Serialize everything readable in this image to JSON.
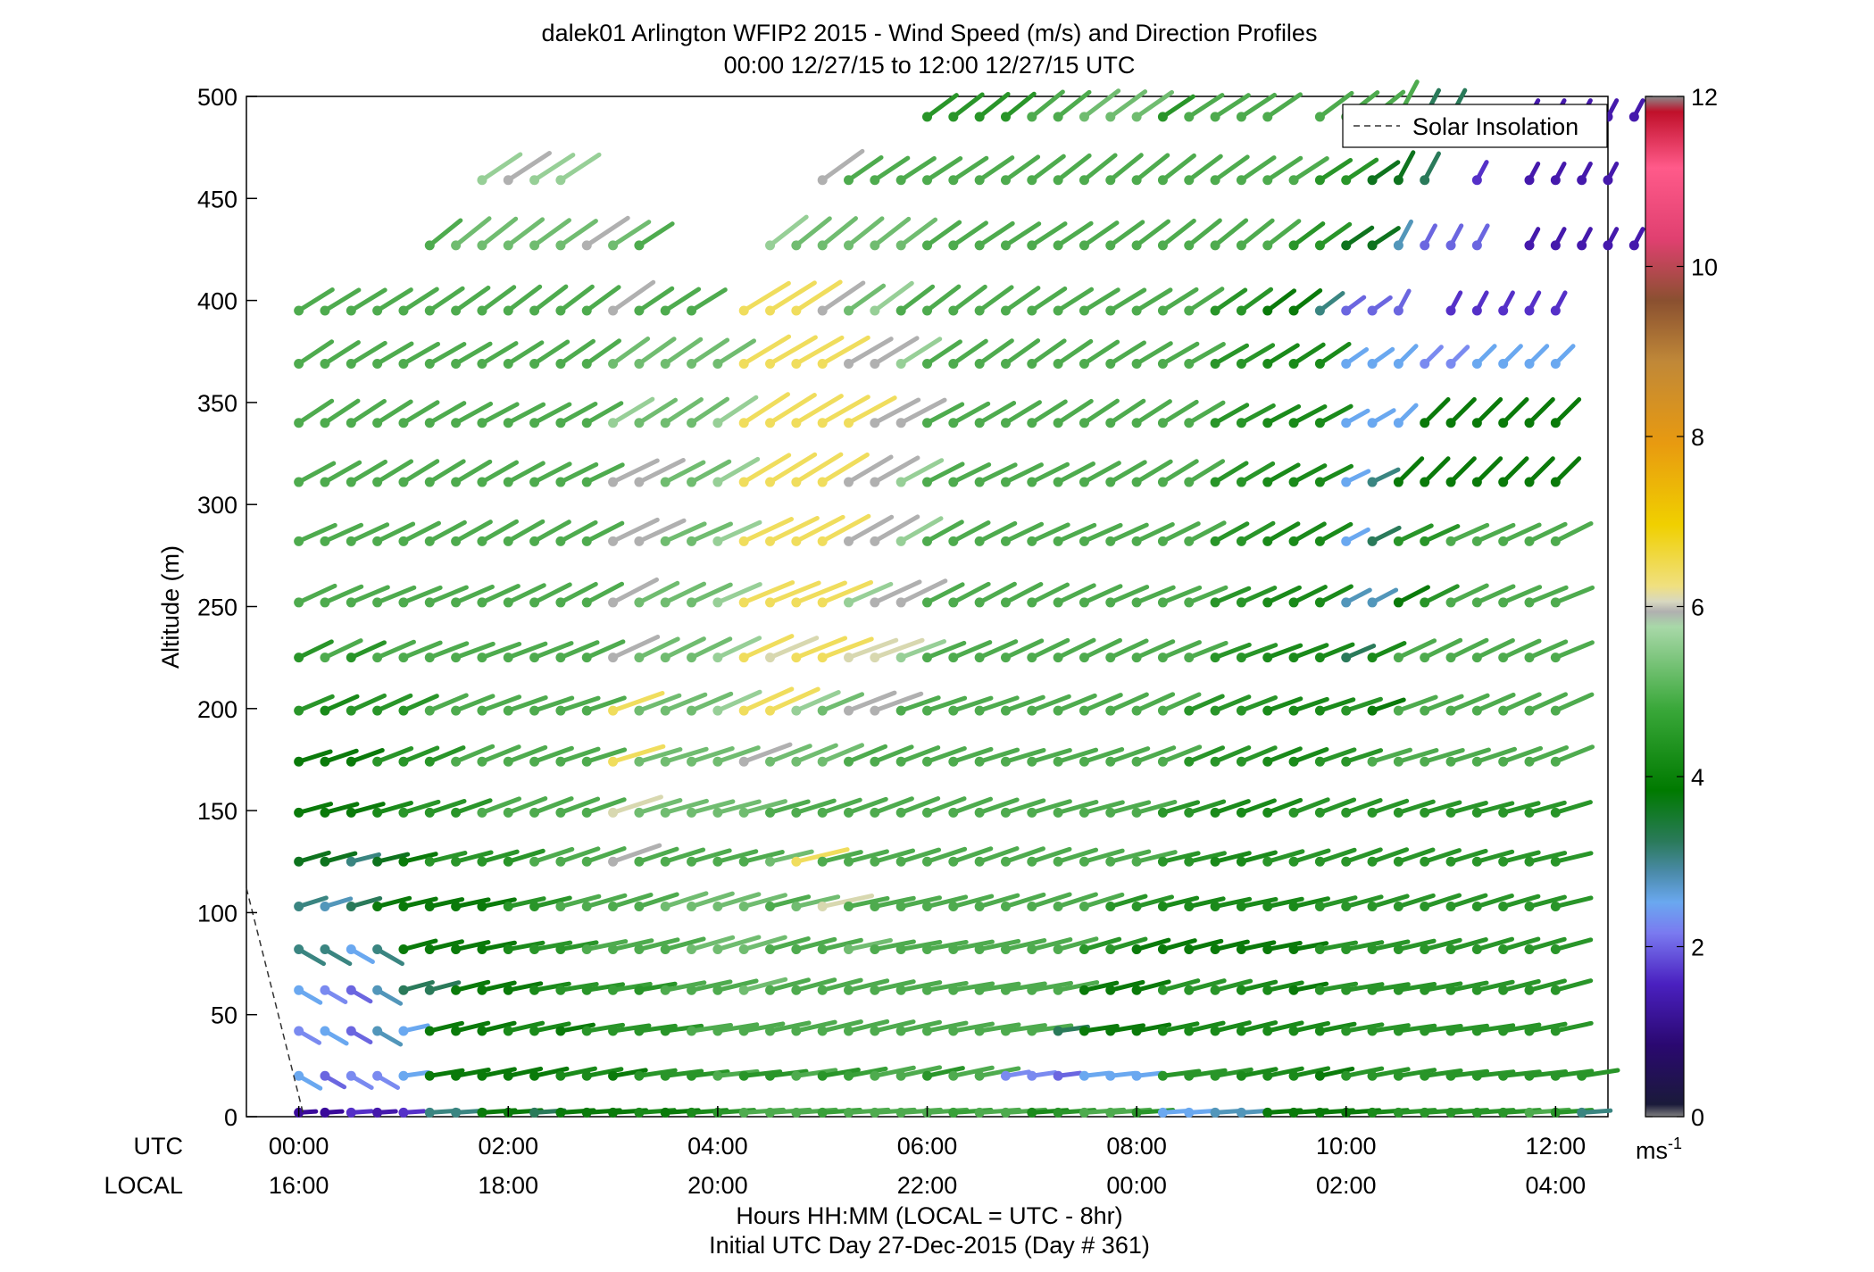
{
  "chart_data": {
    "type": "wind-barb-profile",
    "title": "dalek01 Arlington WFIP2 2015 - Wind Speed (m/s) and Direction Profiles",
    "subtitle": "00:00 12/27/15 to 12:00 12/27/15  UTC",
    "ylabel": "Altitude (m)",
    "xlabel": "Hours HH:MM  (LOCAL = UTC - 8hr)",
    "xlabel2": "Initial UTC Day 27-Dec-2015 (Day # 361)",
    "row_label_utc": "UTC",
    "row_label_local": "LOCAL",
    "x_ticks_utc": [
      "00:00",
      "02:00",
      "04:00",
      "06:00",
      "08:00",
      "10:00",
      "12:00"
    ],
    "x_ticks_local": [
      "16:00",
      "18:00",
      "20:00",
      "22:00",
      "00:00",
      "02:00",
      "04:00"
    ],
    "x_tick_hours": [
      0,
      2,
      4,
      6,
      8,
      10,
      12
    ],
    "xlim_hours": [
      -0.5,
      12.5
    ],
    "y_ticks": [
      0,
      50,
      100,
      150,
      200,
      250,
      300,
      350,
      400,
      450,
      500
    ],
    "ylim": [
      0,
      500
    ],
    "colorbar": {
      "ticks": [
        0,
        2,
        4,
        6,
        8,
        10,
        12
      ],
      "range": [
        0,
        12
      ],
      "unit_label": "ms",
      "unit_exponent": "-1"
    },
    "legend": {
      "label": "Solar Insolation",
      "placement": "top-right"
    },
    "grid": false,
    "solar_insolation": {
      "hours": [
        -0.5,
        0.05
      ],
      "altitude": [
        112,
        0
      ]
    },
    "time_step_hours": 0.25,
    "altitudes": [
      2,
      20,
      42,
      62,
      82,
      103,
      125,
      149,
      174,
      199,
      225,
      252,
      282,
      311,
      340,
      369,
      395,
      427,
      459,
      490
    ],
    "speed_series": [
      {
        "altitude": 2,
        "t_start": 0,
        "values": [
          1.0,
          1.0,
          1.5,
          1.2,
          1.5,
          2.8,
          2.8,
          3.5,
          3.5,
          3.0,
          3.5,
          3.5,
          3.5,
          3.8,
          3.5,
          3.8,
          4.0,
          4.5,
          4.5,
          4.5,
          4.2,
          4.5,
          4.5,
          4.5,
          4.5,
          4.2,
          4.5,
          4.5,
          3.8,
          4.0,
          4.5,
          4.5,
          4.0,
          2.2,
          2.2,
          2.5,
          2.5,
          3.5,
          3.5,
          3.5,
          3.5,
          3.8,
          4.0,
          4.0,
          4.0,
          4.0,
          4.0,
          4.5,
          4.0,
          2.8
        ]
      },
      {
        "altitude": 20,
        "t_start": 0,
        "values": [
          2.2,
          1.8,
          2.0,
          2.0,
          2.2,
          3.5,
          3.5,
          3.5,
          3.5,
          3.5,
          3.8,
          3.8,
          3.5,
          4.0,
          4.0,
          4.0,
          4.5,
          4.0,
          4.0,
          4.5,
          4.0,
          4.2,
          4.5,
          4.5,
          4.0,
          4.5,
          4.5,
          2.0,
          2.0,
          1.8,
          2.2,
          2.2,
          2.2,
          4.0,
          4.0,
          4.0,
          3.8,
          3.8,
          3.8,
          3.5,
          4.0,
          4.0,
          4.0,
          4.0,
          4.0,
          4.0,
          4.0,
          4.0,
          4.0,
          4.0
        ]
      },
      {
        "altitude": 42,
        "t_start": 0,
        "values": [
          2.0,
          2.2,
          1.8,
          2.5,
          2.2,
          3.5,
          3.5,
          3.5,
          3.8,
          3.8,
          3.5,
          4.0,
          4.0,
          4.0,
          4.0,
          4.5,
          4.5,
          4.5,
          4.5,
          4.5,
          4.5,
          4.5,
          4.5,
          4.5,
          4.5,
          4.5,
          4.5,
          4.5,
          4.5,
          3.0,
          3.5,
          3.5,
          3.5,
          3.8,
          3.8,
          3.8,
          3.8,
          3.8,
          3.8,
          3.8,
          4.0,
          4.0,
          4.0,
          4.0,
          4.0,
          4.0,
          4.0,
          4.0,
          4.0
        ]
      },
      {
        "altitude": 62,
        "t_start": 0,
        "values": [
          2.2,
          2.0,
          1.8,
          2.5,
          3.0,
          3.0,
          3.5,
          3.5,
          3.5,
          3.8,
          4.0,
          4.0,
          4.2,
          4.0,
          4.5,
          4.5,
          4.5,
          5.0,
          4.5,
          4.5,
          4.5,
          4.5,
          4.5,
          4.5,
          4.5,
          4.5,
          4.5,
          4.5,
          4.5,
          4.5,
          3.5,
          3.5,
          3.5,
          4.0,
          4.0,
          4.0,
          3.8,
          3.8,
          3.5,
          4.0,
          4.0,
          4.0,
          4.0,
          4.0,
          4.0,
          4.0,
          4.0,
          4.0,
          4.0
        ]
      },
      {
        "altitude": 82,
        "t_start": 0,
        "values": [
          2.8,
          2.8,
          2.2,
          2.8,
          3.5,
          3.5,
          3.5,
          3.5,
          3.8,
          4.0,
          4.0,
          4.5,
          4.5,
          4.5,
          4.5,
          5.0,
          5.0,
          5.0,
          4.5,
          4.5,
          4.5,
          5.0,
          4.5,
          4.5,
          4.5,
          4.5,
          4.5,
          4.5,
          4.5,
          4.5,
          4.0,
          4.0,
          3.5,
          3.5,
          3.5,
          3.5,
          3.5,
          3.5,
          3.5,
          4.0,
          4.0,
          4.0,
          4.0,
          4.0,
          4.0,
          4.0,
          4.0,
          4.0,
          4.0
        ]
      },
      {
        "altitude": 103,
        "t_start": 0,
        "values": [
          2.8,
          2.5,
          3.0,
          3.5,
          3.5,
          3.5,
          3.5,
          3.5,
          4.0,
          4.0,
          4.5,
          4.5,
          4.5,
          4.5,
          5.0,
          5.0,
          5.0,
          5.0,
          4.5,
          5.0,
          6.2,
          4.5,
          4.5,
          4.5,
          4.5,
          4.5,
          4.5,
          4.5,
          4.5,
          4.5,
          4.5,
          4.0,
          4.0,
          3.8,
          3.8,
          3.8,
          3.8,
          3.8,
          3.8,
          4.0,
          4.0,
          4.0,
          4.0,
          4.0,
          4.0,
          4.0,
          4.0,
          4.0,
          4.0
        ]
      },
      {
        "altitude": 125,
        "t_start": 0,
        "values": [
          3.2,
          3.2,
          2.8,
          3.2,
          3.5,
          4.0,
          4.0,
          4.0,
          4.0,
          4.5,
          4.5,
          4.5,
          6.0,
          4.5,
          4.5,
          4.5,
          4.5,
          4.5,
          5.0,
          6.5,
          4.5,
          4.5,
          4.5,
          4.5,
          4.5,
          4.5,
          4.5,
          4.5,
          4.5,
          4.5,
          4.5,
          4.5,
          4.5,
          4.0,
          4.0,
          3.8,
          3.8,
          4.0,
          4.0,
          4.0,
          4.0,
          4.0,
          4.0,
          4.0,
          4.0,
          4.0,
          4.0,
          4.0,
          4.0
        ]
      },
      {
        "altitude": 149,
        "t_start": 0,
        "values": [
          3.5,
          3.5,
          3.5,
          3.8,
          4.0,
          4.0,
          4.0,
          4.5,
          4.5,
          4.5,
          4.5,
          4.5,
          6.2,
          5.0,
          5.0,
          5.0,
          5.0,
          5.0,
          4.5,
          4.5,
          4.5,
          4.5,
          4.5,
          4.5,
          4.5,
          4.5,
          4.5,
          4.5,
          4.5,
          4.5,
          4.5,
          4.5,
          4.5,
          4.0,
          4.0,
          3.8,
          3.8,
          3.8,
          4.0,
          4.0,
          4.0,
          4.0,
          4.0,
          4.0,
          4.0,
          4.0,
          4.0,
          4.0,
          4.0
        ]
      },
      {
        "altitude": 174,
        "t_start": 0,
        "values": [
          3.5,
          3.5,
          3.5,
          4.0,
          4.0,
          4.0,
          4.5,
          4.5,
          4.5,
          4.5,
          4.5,
          4.5,
          6.5,
          5.0,
          5.0,
          5.0,
          5.0,
          6.0,
          5.0,
          5.0,
          5.0,
          4.5,
          4.5,
          4.5,
          4.5,
          4.5,
          4.5,
          4.5,
          4.5,
          4.5,
          4.5,
          4.5,
          4.5,
          4.5,
          4.0,
          4.0,
          4.0,
          3.8,
          3.8,
          4.0,
          4.0,
          4.5,
          4.5,
          4.5,
          4.5,
          4.5,
          4.5,
          4.5,
          4.5
        ]
      },
      {
        "altitude": 199,
        "t_start": 0,
        "values": [
          4.0,
          3.8,
          4.0,
          4.0,
          4.0,
          4.5,
          4.5,
          4.5,
          4.5,
          4.5,
          4.5,
          4.5,
          6.5,
          5.0,
          5.0,
          5.0,
          5.5,
          6.5,
          6.5,
          5.5,
          5.0,
          6.0,
          6.0,
          4.5,
          4.5,
          4.5,
          4.5,
          4.5,
          4.5,
          4.5,
          4.5,
          4.5,
          4.5,
          4.5,
          4.0,
          4.0,
          4.0,
          3.8,
          3.8,
          3.8,
          4.0,
          3.5,
          4.5,
          4.5,
          4.5,
          4.5,
          4.5,
          4.5,
          4.5
        ]
      },
      {
        "altitude": 225,
        "t_start": 0,
        "values": [
          4.0,
          4.5,
          4.0,
          4.5,
          4.5,
          4.5,
          4.5,
          4.5,
          4.5,
          4.5,
          4.5,
          4.5,
          6.0,
          5.0,
          5.0,
          5.0,
          5.5,
          6.5,
          6.2,
          6.5,
          6.5,
          6.2,
          6.2,
          5.5,
          4.5,
          4.5,
          4.5,
          4.5,
          4.5,
          4.5,
          4.5,
          4.5,
          4.5,
          4.5,
          4.5,
          4.0,
          4.0,
          3.8,
          3.8,
          3.8,
          3.0,
          3.8,
          4.5,
          4.5,
          4.5,
          4.5,
          4.5,
          4.5,
          4.5
        ]
      },
      {
        "altitude": 252,
        "t_start": 0,
        "values": [
          4.5,
          4.5,
          4.5,
          4.5,
          4.5,
          4.5,
          4.5,
          4.5,
          4.5,
          4.5,
          4.5,
          4.5,
          6.0,
          5.0,
          5.0,
          5.0,
          5.5,
          6.5,
          6.5,
          6.5,
          6.5,
          5.5,
          6.0,
          6.0,
          4.5,
          4.5,
          4.5,
          4.5,
          4.5,
          4.5,
          4.5,
          4.5,
          4.5,
          4.5,
          4.5,
          4.0,
          4.0,
          3.8,
          3.8,
          3.8,
          2.5,
          2.5,
          3.5,
          4.0,
          4.5,
          4.5,
          4.5,
          4.5,
          4.5
        ]
      },
      {
        "altitude": 282,
        "t_start": 0,
        "values": [
          4.5,
          4.5,
          4.5,
          4.5,
          4.5,
          4.5,
          4.5,
          4.5,
          4.5,
          4.5,
          4.5,
          4.5,
          6.0,
          6.0,
          5.0,
          5.0,
          5.5,
          6.5,
          6.5,
          6.5,
          6.5,
          6.0,
          6.0,
          5.5,
          4.5,
          4.5,
          4.5,
          4.5,
          4.5,
          4.5,
          4.5,
          4.5,
          4.5,
          4.5,
          4.5,
          4.0,
          4.0,
          3.8,
          3.8,
          3.8,
          2.2,
          3.0,
          4.0,
          4.0,
          4.5,
          4.5,
          4.5,
          4.5,
          4.5
        ]
      },
      {
        "altitude": 311,
        "t_start": 0,
        "values": [
          4.5,
          4.5,
          4.5,
          4.5,
          4.5,
          4.5,
          4.5,
          4.5,
          4.5,
          4.5,
          4.5,
          4.5,
          6.0,
          6.0,
          5.0,
          5.0,
          5.5,
          6.5,
          6.5,
          6.5,
          6.5,
          6.0,
          6.0,
          5.5,
          4.5,
          4.5,
          4.5,
          4.5,
          4.5,
          4.5,
          4.5,
          4.5,
          4.5,
          4.5,
          4.5,
          4.0,
          4.0,
          3.8,
          3.8,
          3.8,
          2.2,
          2.8,
          3.5,
          3.5,
          3.5,
          3.5,
          3.5,
          3.5,
          3.5
        ]
      },
      {
        "altitude": 340,
        "t_start": 0,
        "values": [
          4.5,
          4.5,
          4.5,
          4.5,
          4.5,
          4.5,
          4.5,
          4.5,
          4.5,
          4.5,
          4.5,
          4.5,
          5.5,
          5.0,
          5.0,
          5.0,
          5.5,
          6.5,
          6.5,
          6.5,
          6.5,
          6.5,
          6.0,
          6.0,
          4.5,
          4.5,
          4.5,
          4.5,
          4.5,
          4.5,
          4.5,
          4.5,
          4.5,
          4.5,
          4.5,
          4.0,
          4.0,
          3.8,
          3.8,
          3.8,
          2.2,
          2.2,
          2.2,
          3.5,
          3.5,
          3.5,
          3.5,
          3.5,
          3.5
        ]
      },
      {
        "altitude": 369,
        "t_start": 0,
        "values": [
          4.5,
          4.5,
          4.5,
          4.5,
          4.5,
          4.5,
          4.5,
          4.5,
          4.5,
          4.5,
          4.5,
          4.5,
          5.0,
          5.0,
          5.0,
          5.0,
          5.0,
          6.5,
          6.5,
          6.5,
          6.5,
          6.0,
          6.0,
          5.5,
          4.5,
          4.5,
          4.5,
          4.5,
          4.5,
          4.5,
          4.5,
          4.5,
          4.5,
          4.5,
          4.5,
          4.0,
          4.0,
          3.8,
          3.8,
          3.8,
          2.2,
          2.2,
          2.2,
          2.0,
          2.0,
          2.2,
          2.2,
          2.2,
          2.2
        ]
      },
      {
        "altitude": 395,
        "t_start": 0,
        "values": [
          4.5,
          4.5,
          4.5,
          4.5,
          4.5,
          4.5,
          4.5,
          4.5,
          4.5,
          4.5,
          4.5,
          4.5,
          6.0,
          4.5,
          4.5,
          4.5,
          null,
          6.5,
          6.5,
          6.5,
          6.0,
          5.0,
          5.5,
          4.5,
          4.5,
          4.5,
          4.5,
          4.5,
          4.5,
          4.5,
          4.5,
          4.5,
          4.5,
          4.5,
          4.5,
          4.0,
          4.0,
          3.5,
          3.5,
          2.8,
          1.8,
          1.8,
          1.8,
          null,
          1.5,
          1.5,
          1.5,
          1.5,
          1.5
        ]
      },
      {
        "altitude": 427,
        "t_start": 1.25,
        "values": [
          4.5,
          5.0,
          5.0,
          5.0,
          5.0,
          5.0,
          6.0,
          5.0,
          4.5,
          null,
          null,
          null,
          null,
          5.5,
          5.0,
          5.0,
          5.0,
          5.0,
          5.0,
          4.5,
          4.5,
          4.5,
          4.5,
          4.5,
          4.5,
          4.5,
          4.5,
          4.5,
          4.5,
          4.5,
          4.5,
          4.5,
          4.5,
          4.0,
          4.0,
          3.2,
          3.2,
          2.5,
          1.8,
          1.8,
          1.8,
          null,
          1.2,
          1.2,
          1.2,
          1.2,
          1.2
        ]
      },
      {
        "altitude": 459,
        "t_start": 1.75,
        "values": [
          5.5,
          6.0,
          5.5,
          5.5,
          null,
          null,
          null,
          null,
          null,
          null,
          null,
          null,
          null,
          6.0,
          4.5,
          4.5,
          4.5,
          4.5,
          4.5,
          4.5,
          4.5,
          4.5,
          4.5,
          4.5,
          4.5,
          4.5,
          4.5,
          4.5,
          4.5,
          4.5,
          4.5,
          4.5,
          4.0,
          4.0,
          3.2,
          3.2,
          3.0,
          null,
          1.5,
          null,
          1.2,
          1.2,
          1.2,
          1.2
        ]
      },
      {
        "altitude": 490,
        "t_start": 6.0,
        "values": [
          4.0,
          4.0,
          4.0,
          4.0,
          4.5,
          4.5,
          5.0,
          5.0,
          5.0,
          4.0,
          4.5,
          4.5,
          4.5,
          4.5,
          null,
          4.5,
          4.5,
          4.5,
          4.5,
          3.0,
          3.0,
          null,
          null,
          1.2,
          1.2,
          1.2,
          1.2,
          1.2
        ]
      }
    ]
  }
}
